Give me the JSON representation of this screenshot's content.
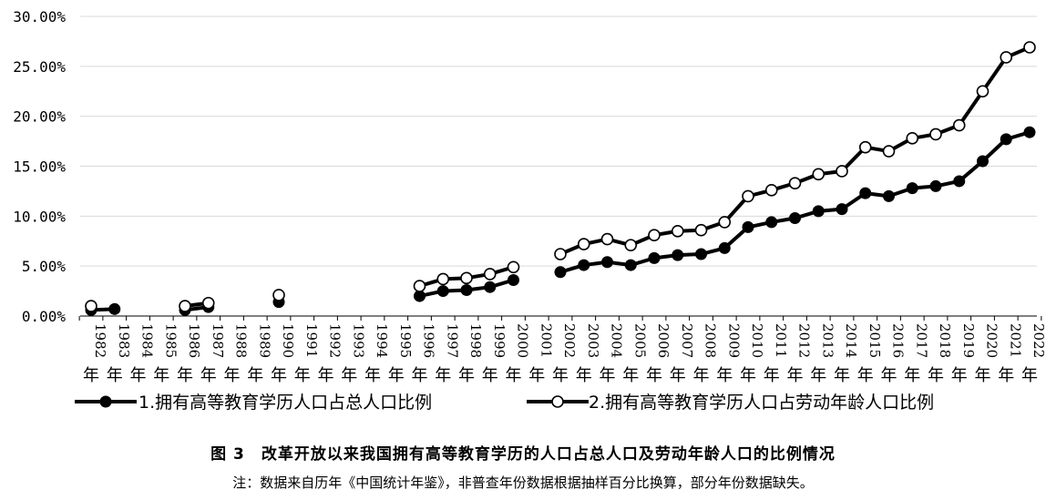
{
  "chart_data": {
    "type": "line",
    "title": "",
    "xlabel": "",
    "ylabel": "",
    "ylim": [
      0,
      0.3
    ],
    "yticks": [
      "0.00%",
      "5.00%",
      "10.00%",
      "15.00%",
      "20.00%",
      "25.00%",
      "30.00%"
    ],
    "grid": true,
    "legend_position": "bottom",
    "categories": [
      "1982年",
      "1983年",
      "1984年",
      "1985年",
      "1986年",
      "1987年",
      "1988年",
      "1989年",
      "1990年",
      "1991年",
      "1992年",
      "1993年",
      "1994年",
      "1995年",
      "1996年",
      "1997年",
      "1998年",
      "1999年",
      "2000年",
      "2001年",
      "2002年",
      "2003年",
      "2004年",
      "2005年",
      "2006年",
      "2007年",
      "2008年",
      "2009年",
      "2010年",
      "2011年",
      "2012年",
      "2013年",
      "2014年",
      "2015年",
      "2016年",
      "2017年",
      "2018年",
      "2019年",
      "2020年",
      "2021年",
      "2022年"
    ],
    "series": [
      {
        "name": "1.拥有高等教育学历人口占总人口比例",
        "marker": "filled-circle",
        "color": "#000000",
        "values": [
          0.006,
          0.007,
          null,
          null,
          0.006,
          0.009,
          null,
          null,
          0.014,
          null,
          null,
          null,
          null,
          null,
          0.02,
          0.025,
          0.026,
          0.029,
          0.036,
          null,
          0.044,
          0.051,
          0.054,
          0.051,
          0.058,
          0.061,
          0.062,
          0.068,
          0.089,
          0.094,
          0.098,
          0.105,
          0.107,
          0.123,
          0.12,
          0.128,
          0.13,
          0.135,
          0.155,
          0.177,
          0.184
        ]
      },
      {
        "name": "2.拥有高等教育学历人口占劳动年龄人口比例",
        "marker": "hollow-circle",
        "color": "#000000",
        "values": [
          0.01,
          null,
          null,
          null,
          0.01,
          0.013,
          null,
          null,
          0.021,
          null,
          null,
          null,
          null,
          null,
          0.03,
          0.037,
          0.038,
          0.042,
          0.049,
          null,
          0.062,
          0.072,
          0.077,
          0.071,
          0.081,
          0.085,
          0.086,
          0.094,
          0.12,
          0.126,
          0.133,
          0.142,
          0.145,
          0.169,
          0.165,
          0.178,
          0.182,
          0.191,
          0.225,
          0.259,
          0.269
        ]
      }
    ]
  },
  "caption": {
    "title": "图 3　改革开放以来我国拥有高等教育学历的人口占总人口及劳动年龄人口的比例情况",
    "note": "注：数据来自历年《中国统计年鉴》，非普查年份数据根据抽样百分比换算，部分年份数据缺失。"
  }
}
